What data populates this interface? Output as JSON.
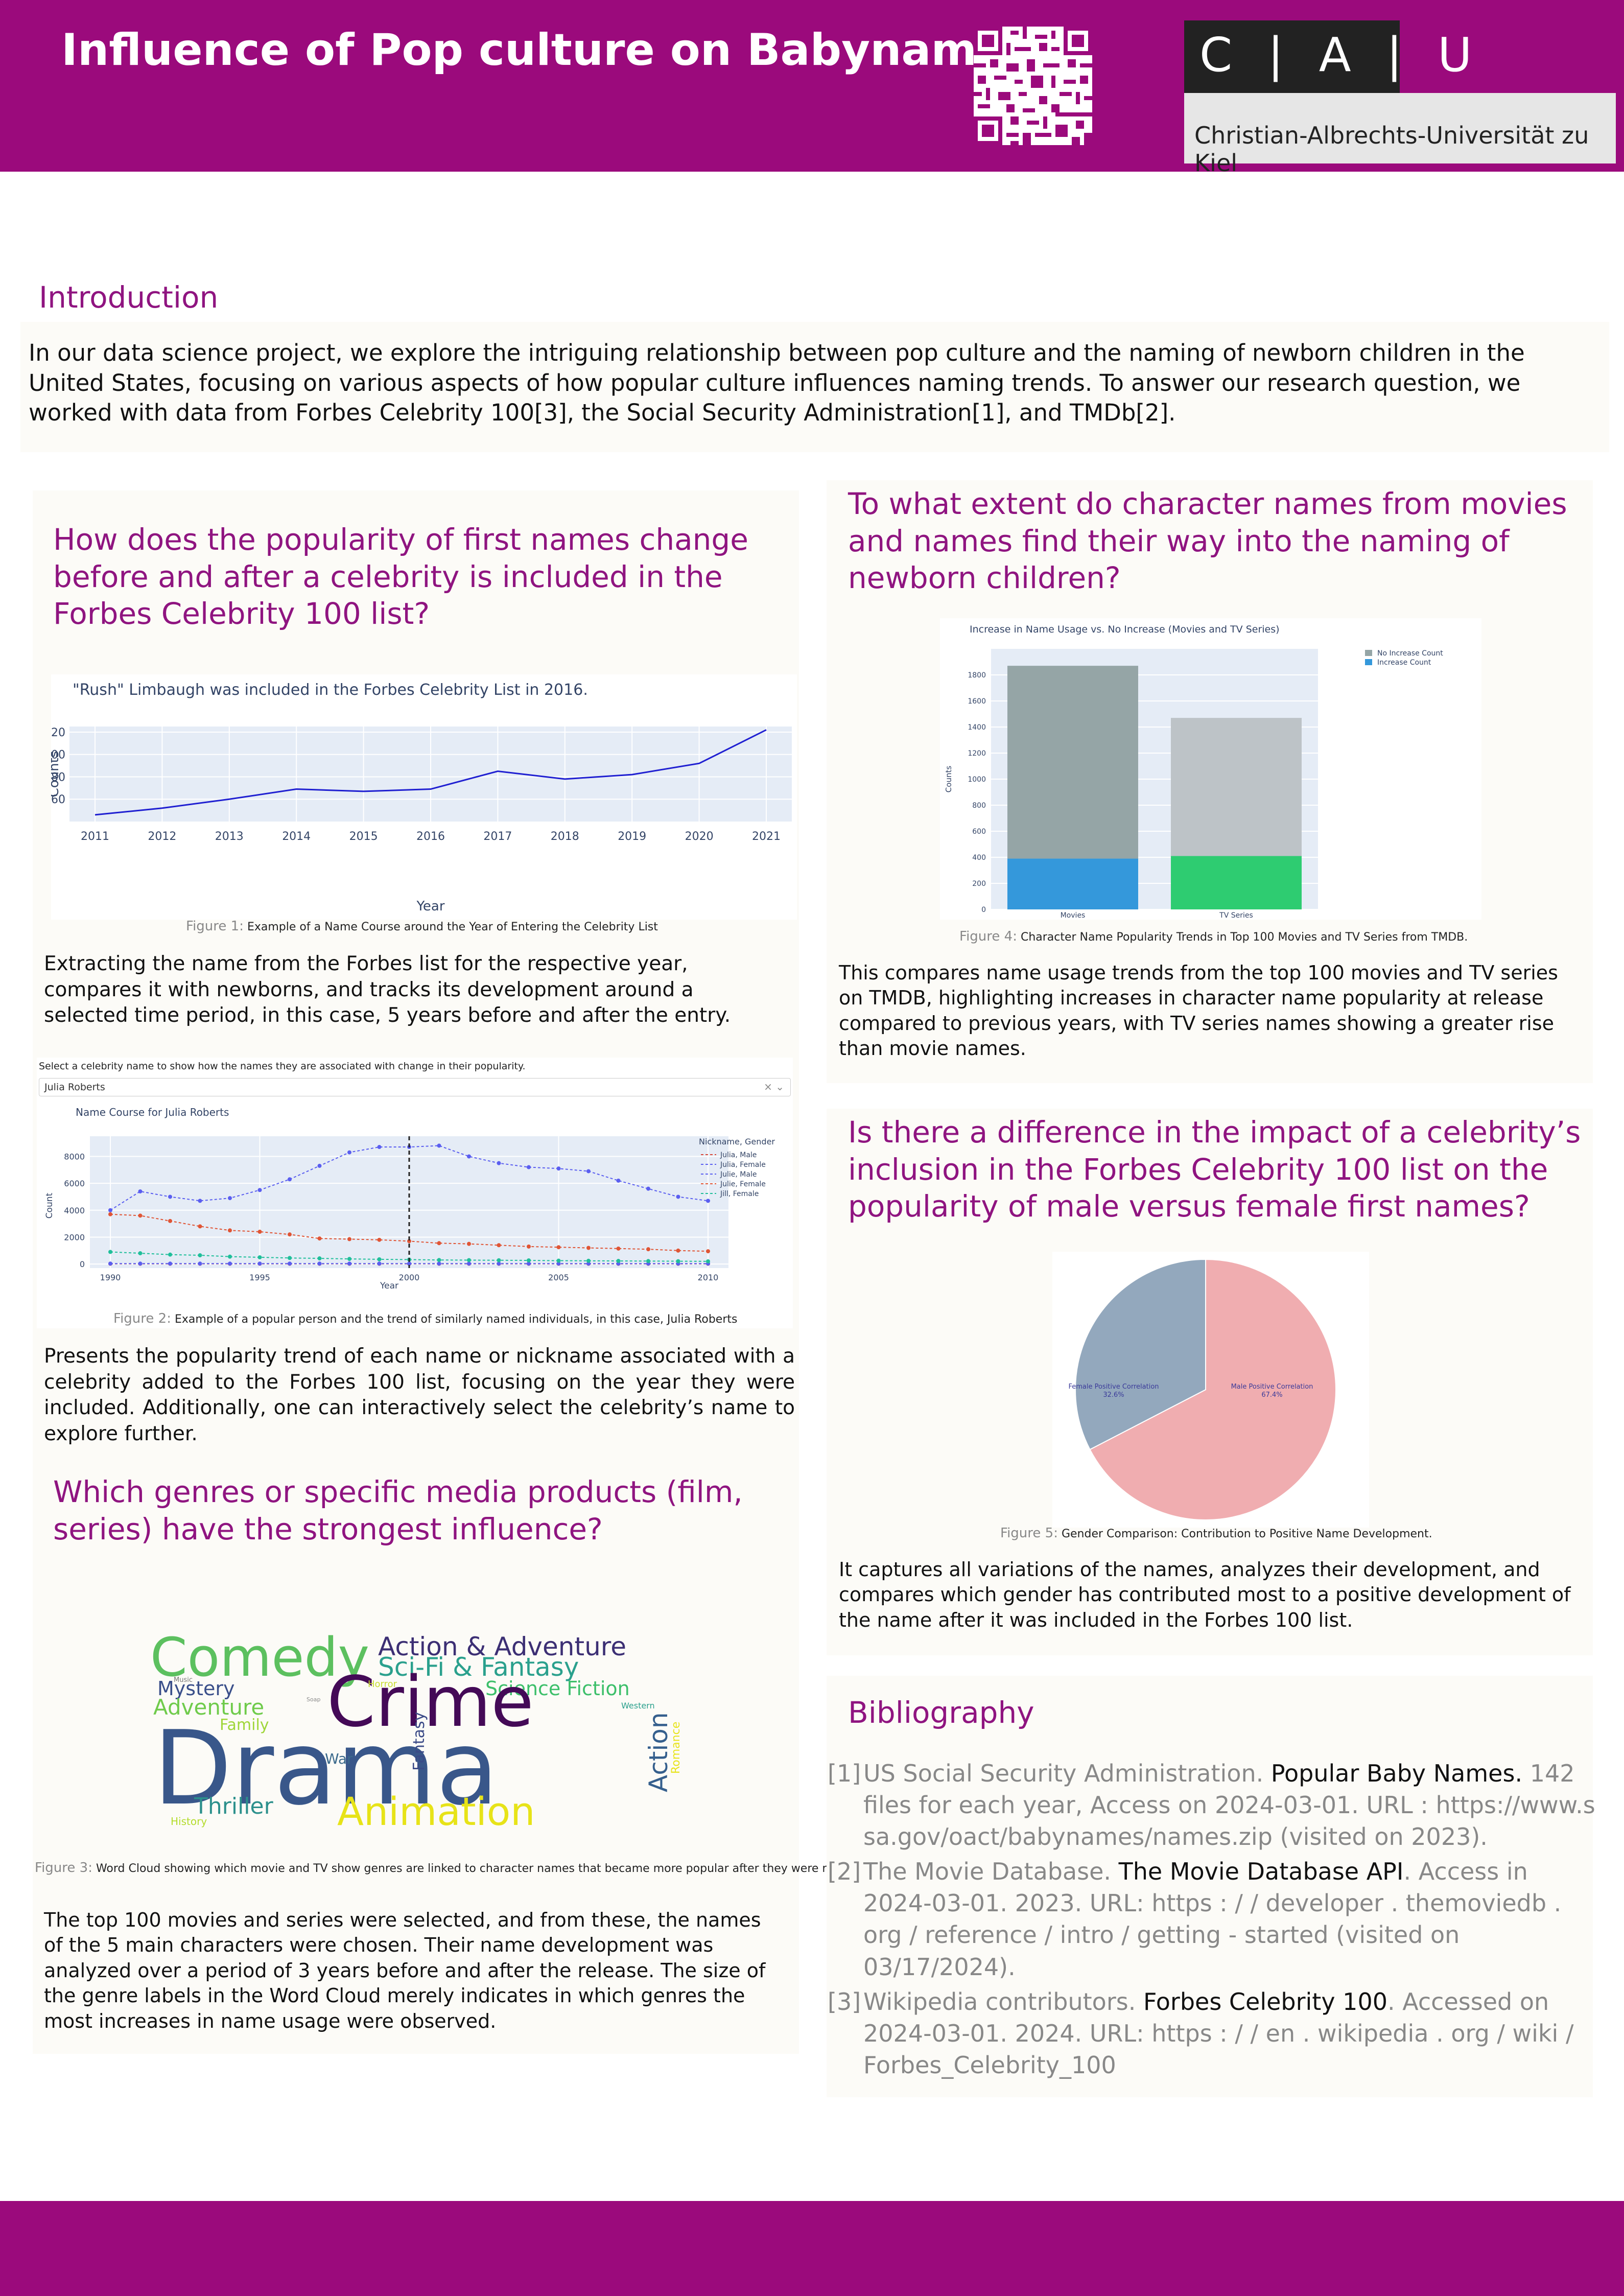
{
  "header": {
    "title": "Influence of Pop culture on Babynames",
    "logo_letters": "C | A | U",
    "logo_name": "Christian-Albrechts-Universität zu Kiel"
  },
  "intro": {
    "heading": "Introduction",
    "text": "In our data science project, we explore the intriguing relationship between pop culture and the naming of newborn children in the United States, focusing on various aspects of how popular culture influences naming trends. To answer our research question, we worked with data from Forbes Celebrity 100[3], the Social Security Administration[1], and TMDb[2]."
  },
  "section1": {
    "heading": "How does the popularity of first names change before and after a celebrity is included in the Forbes Celebrity 100 list?",
    "fig1_caption_label": "Figure 1:",
    "fig1_caption": "Example of a Name Course around the Year of Entering the Celebrity List",
    "text1": "Extracting the name from the Forbes list for the respective year, compares it with newborns, and tracks its development around a selected time period, in this case, 5 years before and after the entry.",
    "select_label": "Select a celebrity name to show how the names they are associated with change in their popularity.",
    "select_value": "Julia Roberts",
    "select_clear": "× ⌄",
    "fig2_caption_label": "Figure 2:",
    "fig2_caption": "Example of a popular person and the trend of similarly named individuals, in this case, Julia Roberts",
    "text2": "Presents the popularity trend of each name or nickname associated with a celebrity added to the Forbes 100 list, focusing on the year they were included. Additionally, one can interactively select the celebrity’s name to explore further."
  },
  "section2": {
    "heading": "Which genres or specific media products (film, series) have the strongest influence?",
    "fig3_caption_label": "Figure 3:",
    "fig3_caption": "Word Cloud showing which movie and TV show genres are linked to character names that became more popular after they were released.",
    "text": "The top 100 movies and series were selected, and from these, the names of the 5 main characters were chosen. Their name development was analyzed over a period of 3 years before and after the release. The size of the genre labels in the Word Cloud merely indicates in which genres the most increases in name usage were observed.",
    "wordcloud": [
      {
        "word": "Comedy",
        "color": "#5cc05f"
      },
      {
        "word": "Action & Adventure",
        "color": "#3c2f74"
      },
      {
        "word": "Sci-Fi & Fantasy",
        "color": "#2aa08d"
      },
      {
        "word": "Mystery",
        "color": "#3a4f8a"
      },
      {
        "word": "Science Fiction",
        "color": "#3cbf6a"
      },
      {
        "word": "Adventure",
        "color": "#6fcb4b"
      },
      {
        "word": "Crime",
        "color": "#440a57"
      },
      {
        "word": "Family",
        "color": "#9fd63a"
      },
      {
        "word": "Drama",
        "color": "#39578a"
      },
      {
        "word": "Fantasy",
        "color": "#3a4a87"
      },
      {
        "word": "War",
        "color": "#3b6a8c"
      },
      {
        "word": "Action",
        "color": "#355f8d"
      },
      {
        "word": "Romance",
        "color": "#e8e41c"
      },
      {
        "word": "Thriller",
        "color": "#2c908c"
      },
      {
        "word": "Animation",
        "color": "#e7e318"
      },
      {
        "word": "History",
        "color": "#b4dc2c"
      },
      {
        "word": "Horror",
        "color": "#c8dd30"
      },
      {
        "word": "Western",
        "color": "#2aa08d"
      },
      {
        "word": "Music",
        "color": "#777777"
      },
      {
        "word": "Soap",
        "color": "#8a8a8a"
      }
    ]
  },
  "section3": {
    "heading": "To what extent do character names from movies and names find their way into the naming of newborn children?",
    "fig4_caption_label": "Figure 4:",
    "fig4_caption": "Character Name Popularity Trends in Top 100 Movies and TV Series from TMDB.",
    "text": "This compares name usage trends from the top 100 movies and TV series on TMDB, highlighting increases in character name popularity at release compared to previous years, with TV series names showing a greater rise than movie names."
  },
  "section4": {
    "heading": "Is there a difference in the impact of a celebrity’s inclusion in the Forbes Celebrity 100 list on the popularity of male versus female first names?",
    "fig5_caption_label": "Figure 5:",
    "fig5_caption": "Gender Comparison: Contribution to Positive Name Development.",
    "text": "It captures all variations of the names, analyzes their development, and compares which gender has contributed most to a positive development of the name after it was included in the Forbes 100 list."
  },
  "bibliography": {
    "heading": "Bibliography",
    "entries": [
      {
        "num": "[1]",
        "author": "US Social Security Administration.",
        "title": "Popular Baby Names.",
        "rest": "142 files for each year, Access on 2024-03-01.",
        "url": "URL : https://www.ssa.gov/oact/babynames/names.zip",
        "visited": "(visited on 2023)."
      },
      {
        "num": "[2]",
        "author": "The Movie Database.",
        "title": "The Movie Database API",
        "rest": ". Access in 2024-03-01. 2023. URL:",
        "url": "https : / / developer . themoviedb . org / reference / intro / getting - started",
        "visited": "(visited on 03/17/2024)."
      },
      {
        "num": "[3]",
        "author": "Wikipedia contributors.",
        "title": "Forbes Celebrity 100",
        "rest": ". Accessed on 2024-03-01. 2024. URL:",
        "url": "https : / / en . wikipedia . org / wiki / Forbes_Celebrity_100",
        "visited": ""
      }
    ]
  },
  "chart_data": [
    {
      "type": "line",
      "title": "\"Rush\" Limbaugh was included in the Forbes Celebrity List in 2016.",
      "xlabel": "Year",
      "ylabel": "Counts",
      "x": [
        2011,
        2012,
        2013,
        2014,
        2015,
        2016,
        2017,
        2018,
        2019,
        2020,
        2021
      ],
      "values": [
        46,
        52,
        60,
        69,
        67,
        69,
        85,
        78,
        82,
        92,
        122
      ],
      "ylim": [
        40,
        125
      ],
      "yticks": [
        60,
        80,
        100,
        120
      ],
      "color": "#1f1fd1"
    },
    {
      "type": "line",
      "title": "Name Course for Julia Roberts",
      "xlabel": "Year",
      "ylabel": "Count",
      "legend_title": "Nickname, Gender",
      "x": [
        1990,
        1991,
        1992,
        1993,
        1994,
        1995,
        1996,
        1997,
        1998,
        1999,
        2000,
        2001,
        2002,
        2003,
        2004,
        2005,
        2006,
        2007,
        2008,
        2009,
        2010
      ],
      "xticks": [
        1990,
        1995,
        2000,
        2005,
        2010
      ],
      "yticks": [
        0,
        2000,
        4000,
        6000,
        8000
      ],
      "ylim": [
        -300,
        9500
      ],
      "marker_year": 2000,
      "series": [
        {
          "name": "Julia, Male",
          "color": "#d6473a",
          "values": [
            20,
            20,
            20,
            20,
            20,
            20,
            20,
            20,
            20,
            20,
            20,
            20,
            20,
            20,
            20,
            20,
            20,
            20,
            20,
            20,
            20
          ]
        },
        {
          "name": "Julia, Female",
          "color": "#5a5ef0",
          "values": [
            4000,
            5400,
            5000,
            4700,
            4900,
            5500,
            6300,
            7300,
            8300,
            8700,
            8700,
            8800,
            8000,
            7500,
            7200,
            7100,
            6900,
            6200,
            5600,
            5000,
            4700
          ]
        },
        {
          "name": "Julie, Male",
          "color": "#5a5ef0",
          "values": [
            30,
            30,
            30,
            30,
            30,
            30,
            30,
            30,
            30,
            30,
            30,
            30,
            30,
            30,
            30,
            30,
            30,
            30,
            30,
            30,
            30
          ]
        },
        {
          "name": "Julie, Female",
          "color": "#e05535",
          "values": [
            3700,
            3600,
            3200,
            2800,
            2500,
            2400,
            2200,
            1900,
            1850,
            1800,
            1700,
            1550,
            1500,
            1400,
            1300,
            1250,
            1200,
            1150,
            1100,
            1000,
            950
          ]
        },
        {
          "name": "Jill, Female",
          "color": "#1fbf9a",
          "values": [
            900,
            800,
            700,
            650,
            550,
            500,
            450,
            420,
            380,
            350,
            330,
            300,
            290,
            280,
            270,
            250,
            240,
            230,
            220,
            210,
            200
          ]
        }
      ]
    },
    {
      "type": "bar",
      "title": "Increase in Name Usage vs. No Increase (Movies and TV Series)",
      "ylabel": "Counts",
      "categories": [
        "Movies",
        "TV Series"
      ],
      "stacked": true,
      "ylim": [
        0,
        2000
      ],
      "yticks": [
        0,
        200,
        400,
        600,
        800,
        1000,
        1200,
        1400,
        1600,
        1800
      ],
      "series": [
        {
          "name": "No Increase Count",
          "colors": [
            "#95a5a6",
            "#bdc3c7"
          ],
          "values": [
            1480,
            1060
          ]
        },
        {
          "name": "Increase Count",
          "colors": [
            "#3498db",
            "#2ecc71"
          ],
          "values": [
            390,
            410
          ]
        }
      ]
    },
    {
      "type": "pie",
      "categories": [
        "Male Positive Correlation",
        "Female Positive Correlation"
      ],
      "values": [
        67.4,
        32.6
      ],
      "labels": [
        "67.4%",
        "32.6%"
      ],
      "colors": [
        "#f0adb0",
        "#93a8bd"
      ]
    }
  ]
}
